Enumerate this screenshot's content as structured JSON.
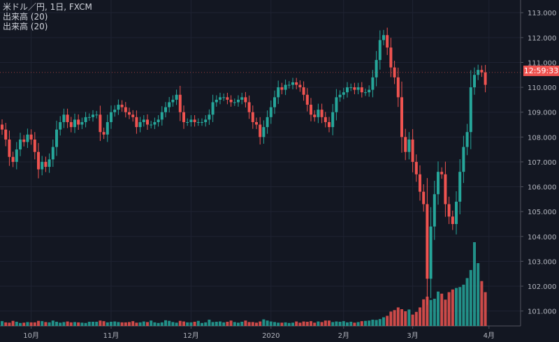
{
  "header": {
    "symbol_line": "米ドル／円, 1日, FXCM",
    "volume_line_1": "出来高 (20)",
    "volume_line_2": "出来高 (20)"
  },
  "price_badge": {
    "text": "12:59:33",
    "value": 110.6
  },
  "colors": {
    "background": "#131722",
    "grid": "#1f2332",
    "up": "#26a69a",
    "down": "#ef5350",
    "text": "#d1d4dc",
    "axis_text": "#b2b5be"
  },
  "chart_data": {
    "type": "candlestick",
    "title": "米ドル／円, 1日, FXCM",
    "y_axis": {
      "position": "right",
      "range": [
        100.4,
        113.4
      ],
      "ticks": [
        "113.000",
        "112.000",
        "111.000",
        "110.000",
        "109.000",
        "108.000",
        "107.000",
        "106.000",
        "105.000",
        "104.000",
        "103.000",
        "102.000",
        "101.000"
      ]
    },
    "x_axis": {
      "ticks": [
        "10月",
        "11月",
        "12月",
        "2020",
        "2月",
        "3月",
        "4月"
      ],
      "tick_index": [
        8,
        30,
        52,
        74,
        94,
        113,
        134
      ]
    },
    "series": [
      {
        "name": "米ドル／円",
        "ohlc_closes": [
          108.3,
          107.9,
          107.2,
          107.0,
          107.5,
          107.9,
          107.8,
          108.1,
          107.9,
          107.4,
          106.7,
          107.0,
          106.8,
          107.1,
          107.6,
          108.3,
          108.6,
          108.9,
          108.6,
          108.4,
          108.7,
          108.5,
          108.6,
          108.8,
          108.8,
          108.9,
          108.9,
          108.2,
          108.1,
          108.6,
          109.0,
          109.1,
          109.3,
          109.2,
          109.0,
          108.9,
          108.8,
          108.4,
          108.6,
          108.7,
          108.5,
          108.5,
          108.6,
          108.7,
          109.0,
          109.2,
          109.4,
          109.5,
          109.7,
          109.0,
          108.6,
          108.6,
          108.7,
          108.6,
          108.6,
          108.6,
          108.7,
          108.9,
          109.4,
          109.5,
          109.6,
          109.6,
          109.5,
          109.4,
          109.4,
          109.5,
          109.6,
          109.4,
          109.0,
          108.6,
          108.5,
          108.0,
          108.4,
          108.8,
          109.2,
          109.6,
          110.0,
          109.9,
          110.1,
          110.1,
          110.2,
          110.1,
          110.0,
          109.7,
          109.3,
          108.9,
          108.8,
          109.1,
          108.8,
          108.6,
          108.4,
          109.0,
          109.6,
          109.7,
          109.8,
          110.0,
          110.0,
          109.9,
          110.0,
          109.8,
          109.8,
          109.9,
          110.4,
          111.1,
          111.9,
          112.1,
          111.6,
          110.8,
          110.4,
          109.6,
          108.0,
          107.4,
          107.9,
          107.0,
          106.5,
          105.8,
          105.3,
          102.3,
          104.4,
          105.7,
          106.6,
          106.5,
          105.3,
          104.8,
          104.5,
          105.4,
          106.6,
          107.6,
          108.2,
          110.0,
          110.5,
          110.7,
          110.6,
          110.1
        ],
        "volume": [
          16,
          12,
          11,
          17,
          14,
          10,
          11,
          13,
          12,
          12,
          17,
          16,
          13,
          12,
          18,
          14,
          11,
          13,
          15,
          12,
          13,
          12,
          11,
          10,
          14,
          14,
          14,
          18,
          16,
          12,
          14,
          15,
          13,
          12,
          12,
          13,
          16,
          11,
          12,
          15,
          13,
          18,
          12,
          10,
          12,
          19,
          17,
          13,
          11,
          17,
          15,
          12,
          12,
          14,
          17,
          10,
          12,
          21,
          13,
          14,
          15,
          12,
          14,
          18,
          13,
          11,
          14,
          18,
          13,
          13,
          11,
          15,
          22,
          18,
          15,
          13,
          11,
          11,
          12,
          10,
          11,
          15,
          11,
          15,
          14,
          16,
          11,
          15,
          13,
          18,
          18,
          13,
          15,
          14,
          16,
          12,
          14,
          11,
          13,
          16,
          17,
          18,
          21,
          20,
          23,
          29,
          34,
          48,
          53,
          62,
          56,
          49,
          55,
          38,
          47,
          62,
          89,
          98,
          87,
          91,
          115,
          108,
          88,
          113,
          122,
          127,
          130,
          138,
          160,
          187,
          280,
          210,
          150,
          113
        ]
      }
    ]
  }
}
